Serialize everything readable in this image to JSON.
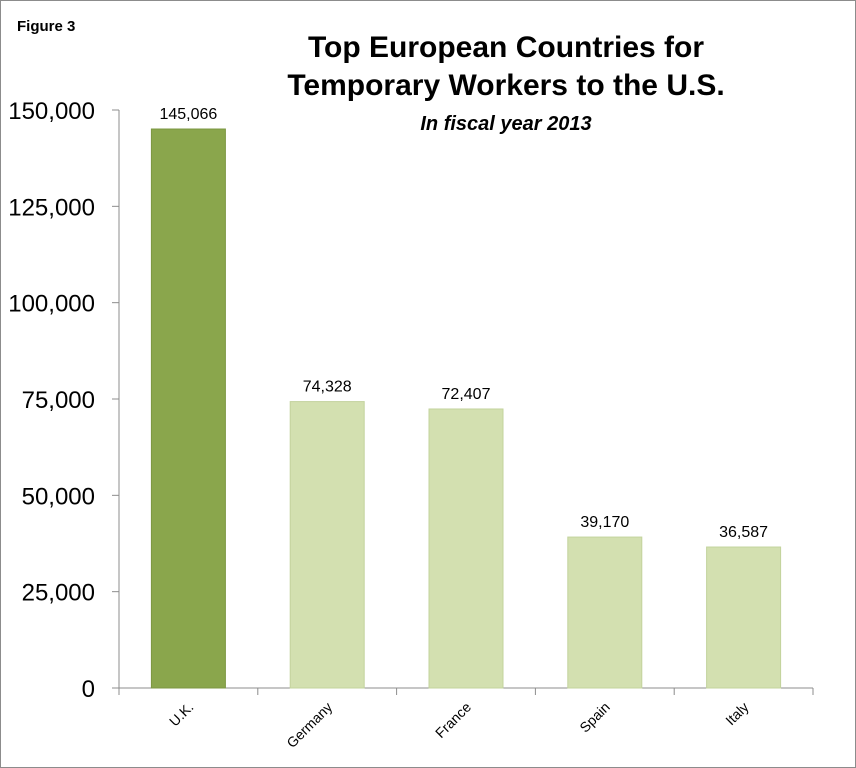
{
  "figure_label": "Figure 3",
  "chart_data": {
    "type": "bar",
    "title": "Top European Countries for Temporary Workers to the U.S.",
    "title_lines": [
      "Top European Countries for",
      "Temporary Workers to the U.S."
    ],
    "subtitle": "In fiscal year 2013",
    "xlabel": "",
    "ylabel": "",
    "categories": [
      "U.K.",
      "Germany",
      "France",
      "Spain",
      "Italy"
    ],
    "values": [
      145066,
      74328,
      72407,
      39170,
      36587
    ],
    "data_labels": [
      "145,066",
      "74,328",
      "72,407",
      "39,170",
      "36,587"
    ],
    "ylim": [
      0,
      150000
    ],
    "yticks": [
      0,
      25000,
      50000,
      75000,
      100000,
      125000,
      150000
    ],
    "ytick_labels": [
      "0",
      "25,000",
      "50,000",
      "75,000",
      "100,000",
      "125,000",
      "150,000"
    ],
    "grid": false,
    "legend": "none",
    "colors": {
      "highlight": "#8aa64c",
      "highlight_edge": "#7c9742",
      "bar": "#d3e0b0",
      "bar_edge": "#c3d39d",
      "axis": "#8c8c8c",
      "text": "#000000"
    }
  }
}
